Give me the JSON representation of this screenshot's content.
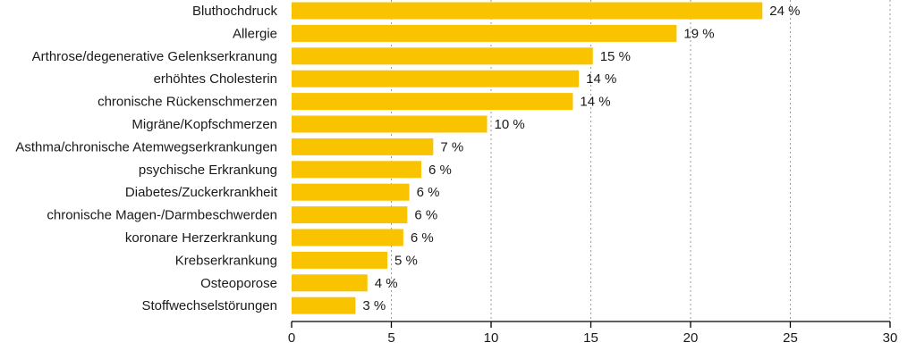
{
  "chart_data": {
    "type": "bar",
    "orientation": "horizontal",
    "categories": [
      "Bluthochdruck",
      "Allergie",
      "Arthrose/degenerative Gelenkserkranung",
      "erhöhtes Cholesterin",
      "chronische Rückenschmerzen",
      "Migräne/Kopfschmerzen",
      "Asthma/chronische Atemwegserkrankungen",
      "psychische Erkrankung",
      "Diabetes/Zuckerkrankheit",
      "chronische Magen-/Darmbeschwerden",
      "koronare Herzerkrankung",
      "Krebserkrankung",
      "Osteoporose",
      "Stoffwechselstörungen"
    ],
    "values": [
      23.6,
      19.3,
      15.1,
      14.4,
      14.1,
      9.8,
      7.1,
      6.5,
      5.9,
      5.8,
      5.6,
      4.8,
      3.8,
      3.2
    ],
    "value_labels": [
      "24 %",
      "19 %",
      "15 %",
      "14 %",
      "14 %",
      "10 %",
      "7 %",
      "6 %",
      "6 %",
      "6 %",
      "6 %",
      "5 %",
      "4 %",
      "3 %"
    ],
    "xlim": [
      0,
      30
    ],
    "xticks": [
      0,
      5,
      10,
      15,
      20,
      25,
      30
    ],
    "title": "",
    "xlabel": "",
    "ylabel": "",
    "grid": "vertical dotted",
    "bar_color": "#f9c300"
  }
}
